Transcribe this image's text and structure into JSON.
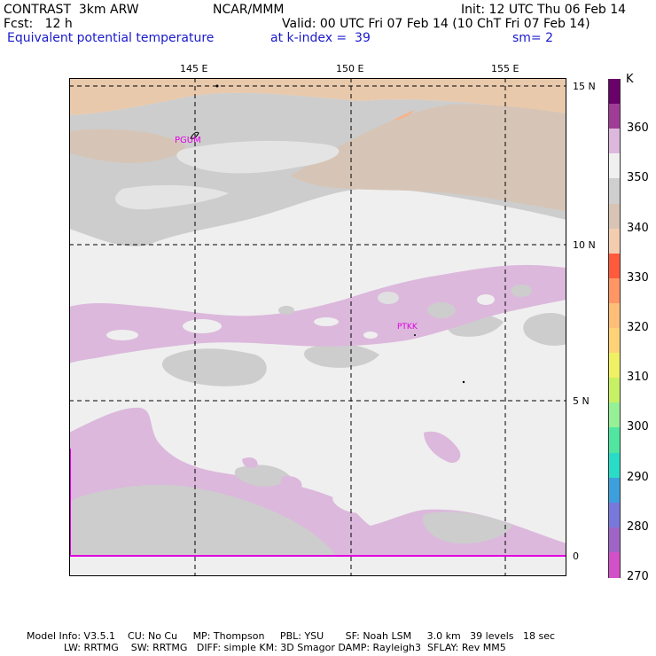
{
  "header": {
    "model": "CONTRAST  3km ARW",
    "center": "NCAR/MMM",
    "init": "Init: 12 UTC Thu 06 Feb 14",
    "fcst": "Fcst:   12 h",
    "valid": "Valid: 00 UTC Fri 07 Feb 14 (10 ChT Fri 07 Feb 14)",
    "field": "Equivalent potential temperature",
    "level": "at k-index =  39",
    "smooth": "sm= 2"
  },
  "map": {
    "lon_labels": [
      "145 E",
      "150 E",
      "155 E"
    ],
    "lat_labels": [
      "15 N",
      "10 N",
      "5 N",
      "0"
    ],
    "stations": [
      "PGUM",
      "PTKK"
    ]
  },
  "colorbar": {
    "unit": "K",
    "labels": [
      "360",
      "350",
      "340",
      "330",
      "320",
      "310",
      "300",
      "290",
      "280",
      "270"
    ],
    "colors": [
      "#6a006a",
      "#a03c96",
      "#dcb8dc",
      "#f0f0f0",
      "#cfcfcf",
      "#d8c4b4",
      "#f4cdb0",
      "#ff5a3c",
      "#ff9664",
      "#ffbe78",
      "#ffd278",
      "#f0f064",
      "#c8f064",
      "#96f096",
      "#50e6a0",
      "#28dcc8",
      "#3ca0dc",
      "#7878dc",
      "#a064c8",
      "#d250c8"
    ]
  },
  "footer": {
    "line1": "Model Info: V3.5.1    CU: No Cu     MP: Thompson     PBL: YSU       SF: Noah LSM     3.0 km   39 levels   18 sec",
    "line2": "            LW: RRTMG    SW: RRTMG   DIFF: simple KM: 3D Smagor DAMP: Rayleigh3  SFLAY: Rev MM5"
  }
}
